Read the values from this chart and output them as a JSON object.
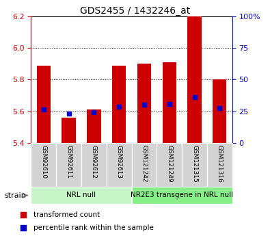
{
  "title": "GDS2455 / 1432246_at",
  "samples": [
    "GSM92610",
    "GSM92611",
    "GSM92612",
    "GSM92613",
    "GSM121242",
    "GSM121249",
    "GSM121315",
    "GSM121316"
  ],
  "red_values": [
    5.89,
    5.56,
    5.61,
    5.89,
    5.9,
    5.91,
    6.2,
    5.8
  ],
  "blue_values": [
    5.61,
    5.585,
    5.595,
    5.63,
    5.64,
    5.645,
    5.69,
    5.62
  ],
  "ylim_left": [
    5.4,
    6.2
  ],
  "ylim_right": [
    0,
    100
  ],
  "baseline": 5.4,
  "yticks_left": [
    5.4,
    5.6,
    5.8,
    6.0,
    6.2
  ],
  "yticks_right": [
    0,
    25,
    50,
    75,
    100
  ],
  "ytick_labels_right": [
    "0",
    "25",
    "50",
    "75",
    "100%"
  ],
  "groups": [
    {
      "label": "NRL null",
      "start": 0,
      "end": 4,
      "color": "#c8f5c8"
    },
    {
      "label": "NR2E3 transgene in NRL null",
      "start": 4,
      "end": 8,
      "color": "#88ee88"
    }
  ],
  "bar_width": 0.55,
  "bar_color": "#cc0000",
  "blue_color": "#0000cc",
  "legend_red": "transformed count",
  "legend_blue": "percentile rank within the sample",
  "strain_label": "strain",
  "tick_color_left": "#cc0000",
  "tick_color_right": "#0000cc",
  "bg_color": "#ffffff",
  "sample_box_color": "#d3d3d3",
  "title_fontsize": 10,
  "label_fontsize": 7,
  "group_fontsize": 7.5,
  "legend_fontsize": 7.5
}
